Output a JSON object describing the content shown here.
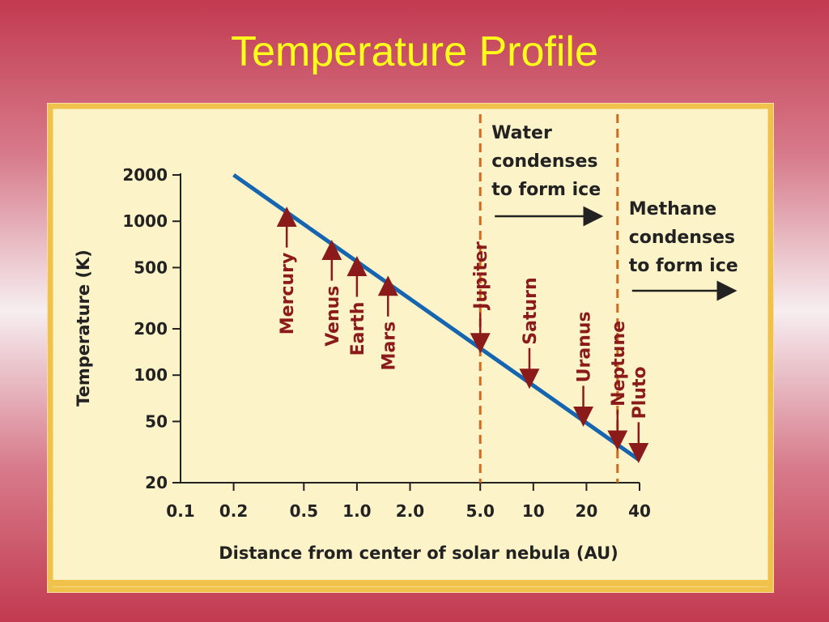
{
  "slide": {
    "title": "Temperature Profile"
  },
  "colors": {
    "panel": "#fdf3c9",
    "border": "#f0c14b",
    "line": "#1565b0",
    "arrow": "#8b1a1a",
    "divider": "#d06a1e",
    "text": "#222222"
  },
  "chart_data": {
    "type": "line",
    "title": "",
    "xlabel": "Distance from center of solar nebula (AU)",
    "ylabel": "Temperature (K)",
    "xscale": "log",
    "yscale": "log",
    "xlim": [
      0.1,
      40
    ],
    "ylim": [
      20,
      2000
    ],
    "x_ticks": [
      0.1,
      0.2,
      0.5,
      1.0,
      2.0,
      5.0,
      10,
      20,
      40
    ],
    "x_tick_labels": [
      "0.1",
      "0.2",
      "0.5",
      "1.0",
      "2.0",
      "5.0",
      "10",
      "20",
      "40"
    ],
    "y_ticks": [
      2000,
      1000,
      500,
      200,
      100,
      50,
      20
    ],
    "y_tick_labels": [
      "2000",
      "1000",
      "500",
      "200",
      "100",
      "50",
      "20"
    ],
    "grid": false,
    "series": [
      {
        "x": [
          0.2,
          40
        ],
        "y": [
          2000,
          28
        ]
      }
    ],
    "planets": [
      {
        "label": "Mercury",
        "x": 0.4,
        "y": 1150
      },
      {
        "label": "Venus",
        "x": 0.72,
        "y": 700
      },
      {
        "label": "Earth",
        "x": 1.0,
        "y": 550
      },
      {
        "label": "Mars",
        "x": 1.5,
        "y": 410
      },
      {
        "label": "Jupiter",
        "x": 5.0,
        "y": 150
      },
      {
        "label": "Saturn",
        "x": 9.5,
        "y": 88
      },
      {
        "label": "Uranus",
        "x": 19.2,
        "y": 50
      },
      {
        "label": "Neptune",
        "x": 30,
        "y": 35
      },
      {
        "label": "Pluto",
        "x": 39.5,
        "y": 29
      }
    ],
    "condensation_lines": [
      {
        "x": 5.0,
        "lines": [
          "Water",
          "condenses",
          "to form ice"
        ]
      },
      {
        "x": 30,
        "lines": [
          "Methane",
          "condenses",
          "to form ice"
        ]
      }
    ]
  }
}
